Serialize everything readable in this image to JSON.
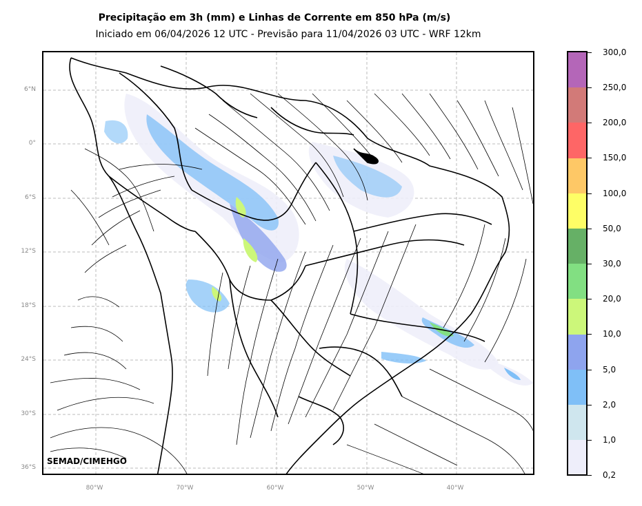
{
  "title": "Precipitação em 3h (mm) e Linhas de Corrente em 850 hPa (m/s)",
  "subtitle": "Iniciado em 06/04/2026 12 UTC - Previsão para 11/04/2026 03 UTC - WRF 12km",
  "credit": "SEMAD/CIMEHGO",
  "lat_labels": [
    "6°N",
    "0°",
    "6°S",
    "12°S",
    "18°S",
    "24°S",
    "30°S",
    "36°S"
  ],
  "lon_labels": [
    "80°W",
    "70°W",
    "60°W",
    "50°W",
    "40°W"
  ],
  "colorbar": {
    "ticks": [
      "0,2",
      "1,0",
      "2,0",
      "5,0",
      "10,0",
      "20,0",
      "30,0",
      "50,0",
      "100,0",
      "150,0",
      "200,0",
      "250,0",
      "300,0"
    ],
    "colors": [
      "#eeeefa",
      "#cfe6ee",
      "#7fbff7",
      "#8ea4ee",
      "#ccf77a",
      "#82df82",
      "#66b066",
      "#fefe66",
      "#fec866",
      "#fe6666",
      "#d27a78",
      "#b466b8"
    ]
  }
}
